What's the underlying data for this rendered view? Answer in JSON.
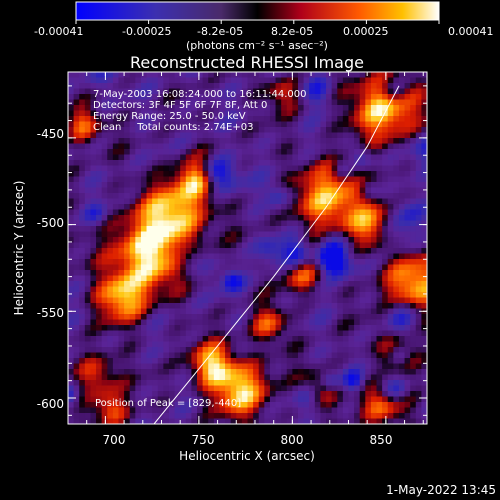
{
  "colorbar": {
    "ticks": [
      "-0.00041",
      "-0.00025",
      "-8.2e-05",
      "8.2e-05",
      "0.00025",
      "0.00041"
    ],
    "unit": "(photons cm⁻² s⁻¹ asec⁻²)"
  },
  "chart_data": {
    "type": "heatmap",
    "title": "Reconstructed RHESSI Image",
    "xlabel": "Heliocentric X (arcsec)",
    "ylabel": "Heliocentric Y (arcsec)",
    "xlim": [
      680,
      872
    ],
    "ylim": [
      -615,
      -412
    ],
    "xticks": [
      "700",
      "750",
      "800",
      "850"
    ],
    "yticks": [
      "-450",
      "-500",
      "-550",
      "-600"
    ],
    "value_range": [
      -0.00041,
      0.00041
    ],
    "annotations": [
      "7-May-2003 16:08:24.000 to 16:11:44.000",
      "Detectors: 3F 4F 5F 6F 7F 8F, Att 0",
      "Energy Range: 25.0 - 50.0 keV",
      "Clean     Total counts: 2.74E+03"
    ],
    "peak_label": "Position of Peak = [829,-440]",
    "peak": [
      829,
      -440
    ],
    "limb_arc": [
      [
        726,
        -615
      ],
      [
        760,
        -570
      ],
      [
        790,
        -530
      ],
      [
        818,
        -490
      ],
      [
        840,
        -455
      ],
      [
        857,
        -420
      ]
    ]
  },
  "footer": {
    "timestamp": "1-May-2022 13:45"
  }
}
